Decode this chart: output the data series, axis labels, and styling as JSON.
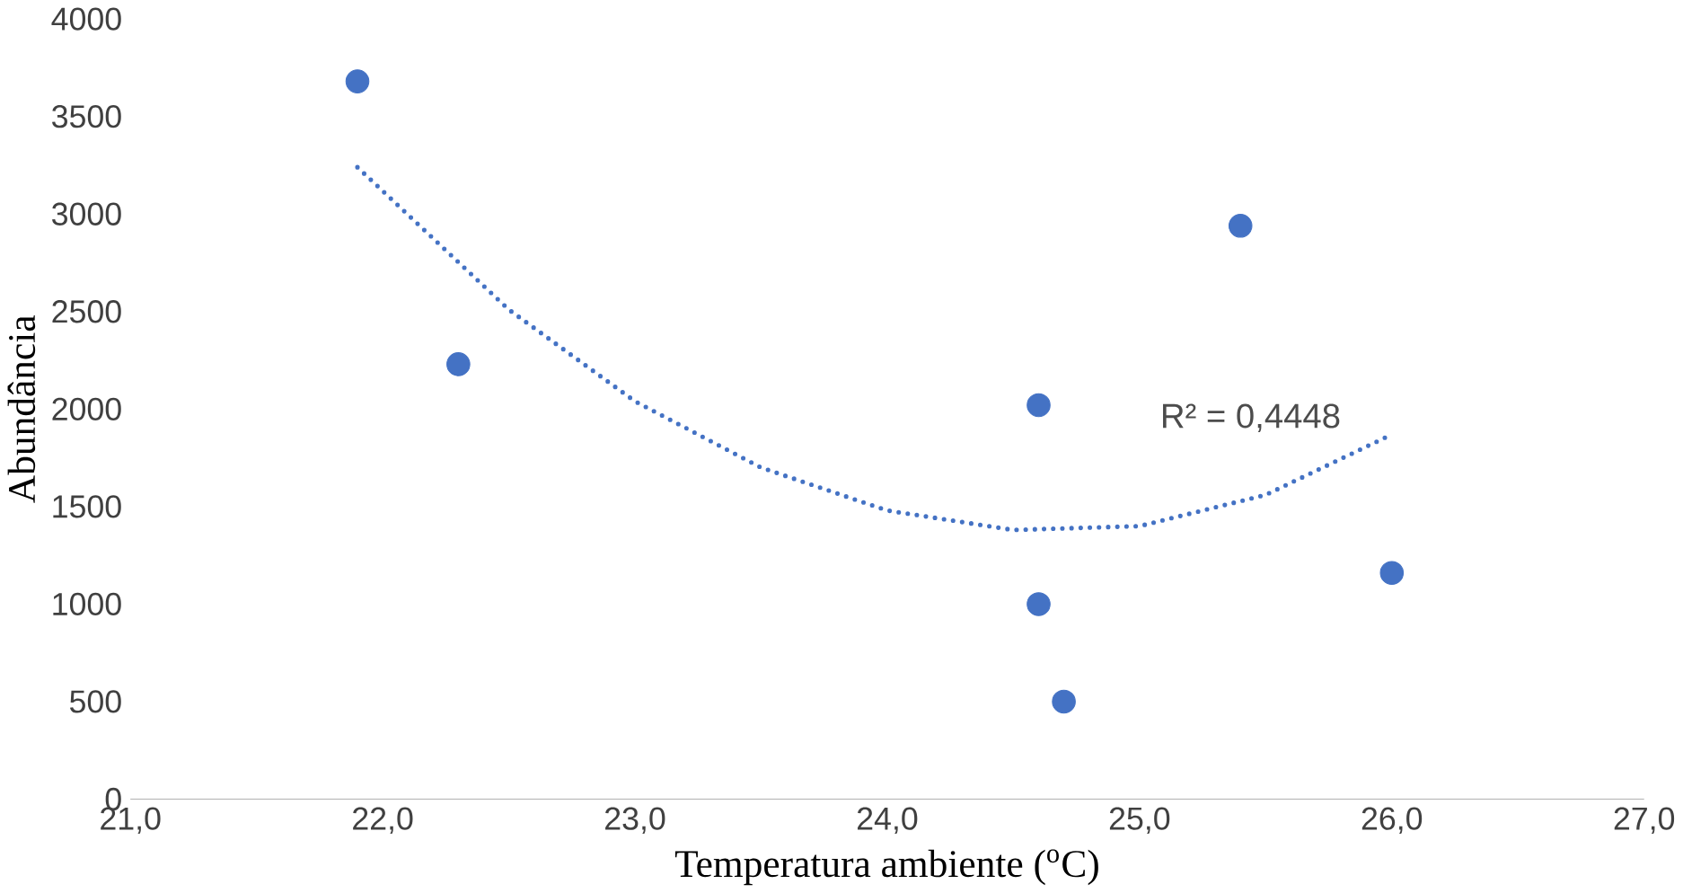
{
  "chart_data": {
    "type": "scatter",
    "xlabel": "Temperatura ambiente ($^{o}$C)",
    "ylabel": "Abundância",
    "xlim": [
      21,
      27
    ],
    "ylim": [
      0,
      4000
    ],
    "xticks": [
      {
        "value": 21,
        "label": "21,0"
      },
      {
        "value": 22,
        "label": "22,0"
      },
      {
        "value": 23,
        "label": "23,0"
      },
      {
        "value": 24,
        "label": "24,0"
      },
      {
        "value": 25,
        "label": "25,0"
      },
      {
        "value": 26,
        "label": "26,0"
      },
      {
        "value": 27,
        "label": "27,0"
      }
    ],
    "yticks": [
      0,
      500,
      1000,
      1500,
      2000,
      2500,
      3000,
      3500,
      4000
    ],
    "series": [
      {
        "type": "scatter",
        "marker": "circle",
        "color": "#4472c4",
        "x": [
          21.9,
          22.3,
          24.6,
          24.6,
          24.7,
          25.4,
          26.0
        ],
        "values": [
          3680,
          2230,
          2020,
          1000,
          500,
          2940,
          1160
        ]
      },
      {
        "type": "line",
        "color": "#4472c4",
        "line_style": "dotted",
        "x": [
          21.9,
          22.5,
          23.0,
          23.5,
          24.0,
          24.5,
          25.0,
          25.5,
          26.0
        ],
        "values": [
          3240,
          2510,
          2040,
          1700,
          1480,
          1380,
          1400,
          1560,
          1870
        ]
      }
    ],
    "annotations": [
      "R² = 0,4448"
    ]
  }
}
